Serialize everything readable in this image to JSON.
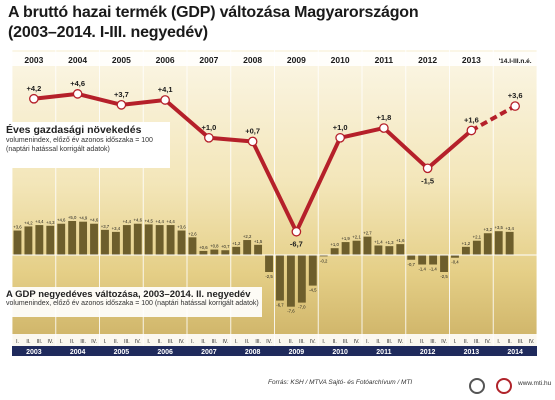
{
  "title_line1": "A bruttó hazai termék (GDP) változása Magyarországon",
  "title_line2": "(2003–2014. I-III. negyedév)",
  "annual_title": "Éves gazdasági növekedés",
  "annual_sub1": "volumenindex, előző év azonos időszaka = 100",
  "annual_sub2": "(naptári hatással korrigált adatok)",
  "quarterly_title": "A GDP negyedéves változása, 2003–2014. II. negyedév",
  "quarterly_sub": "volumenindex, előző év azonos időszaka = 100 (naptári hatással korrigált adatok)",
  "footer_source": "Forrás: KSH / MTVA Sajtó- és Fotóarchívum / MTI",
  "footer_url": "www.mti.hu",
  "colors": {
    "line": "#b5202a",
    "bar": "#6d5e2c",
    "axis_band": "#1f2a5c"
  },
  "chart_data": [
    {
      "type": "line",
      "categories": [
        "2003",
        "2004",
        "2005",
        "2006",
        "2007",
        "2008",
        "2009",
        "2010",
        "2011",
        "2012",
        "2013",
        "'14.I-III.n.é."
      ],
      "values": [
        4.2,
        4.6,
        3.7,
        4.1,
        1.0,
        0.7,
        -6.7,
        1.0,
        1.8,
        -1.5,
        1.6,
        3.6
      ],
      "labels": [
        "+4,2",
        "+4,6",
        "+3,7",
        "+4,1",
        "+1,0",
        "+0,7",
        "-6,7",
        "+1,0",
        "+1,8",
        "-1,5",
        "+1,6",
        "+3,6"
      ],
      "last_segment_dashed": true
    },
    {
      "type": "bar",
      "years": [
        "2003",
        "2004",
        "2005",
        "2006",
        "2007",
        "2008",
        "2009",
        "2010",
        "2011",
        "2012",
        "2013",
        "2014"
      ],
      "quarter_labels": [
        "I.",
        "II.",
        "III.",
        "IV."
      ],
      "values": [
        3.6,
        4.2,
        4.4,
        4.3,
        4.6,
        5.0,
        4.9,
        4.6,
        3.7,
        3.4,
        4.4,
        4.6,
        4.5,
        4.4,
        4.4,
        3.6,
        2.6,
        0.6,
        0.8,
        0.7,
        1.2,
        2.2,
        1.5,
        -2.5,
        -6.7,
        -7.6,
        -7.0,
        -4.5,
        -0.2,
        1.0,
        1.9,
        2.1,
        2.7,
        1.4,
        1.3,
        1.6,
        -0.7,
        -1.4,
        -1.4,
        -2.5,
        -0.4,
        1.2,
        2.1,
        3.2,
        3.5,
        3.4
      ],
      "value_labels": [
        "+3,6",
        "+4,2",
        "+4,4",
        "+4,3",
        "+4,6",
        "+5,0",
        "+4,9",
        "+4,6",
        "+3,7",
        "+3,4",
        "+4,4",
        "+4,6",
        "+4,5",
        "+4,4",
        "+4,4",
        "+3,6",
        "+2,6",
        "+0,6",
        "+0,8",
        "+0,7",
        "+1,2",
        "+2,2",
        "+1,5",
        "-2,5",
        "-6,7",
        "-7,6",
        "-7,0",
        "-4,5",
        "-0,2",
        "+1,0",
        "+1,9",
        "+2,1",
        "+2,7",
        "+1,4",
        "+1,3",
        "+1,6",
        "-0,7",
        "-1,4",
        "-1,4",
        "-2,5",
        "-0,4",
        "+1,2",
        "+2,1",
        "+3,2",
        "+3,5",
        "+3,4"
      ]
    }
  ]
}
